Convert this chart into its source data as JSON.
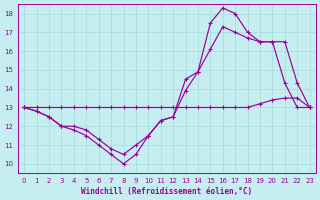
{
  "xlabel": "Windchill (Refroidissement éolien,°C)",
  "xlim": [
    -0.5,
    23.5
  ],
  "ylim": [
    9.5,
    18.5
  ],
  "xticks": [
    0,
    1,
    2,
    3,
    4,
    5,
    6,
    7,
    8,
    9,
    10,
    11,
    12,
    13,
    14,
    15,
    16,
    17,
    18,
    19,
    20,
    21,
    22,
    23
  ],
  "yticks": [
    10,
    11,
    12,
    13,
    14,
    15,
    16,
    17,
    18
  ],
  "bg_color": "#c6eef0",
  "grid_color": "#aadddf",
  "line_color": "#990099",
  "line1_x": [
    0,
    1,
    2,
    3,
    4,
    5,
    6,
    7,
    8,
    9,
    10,
    11,
    12,
    13,
    14,
    15,
    16,
    17,
    18,
    19,
    20,
    21,
    22,
    23
  ],
  "line1_y": [
    13,
    12.8,
    12.5,
    12.0,
    11.8,
    11.5,
    11.0,
    10.5,
    10.0,
    10.5,
    11.5,
    12.3,
    12.5,
    14.5,
    14.9,
    17.5,
    18.3,
    18.0,
    17.0,
    16.5,
    16.5,
    14.3,
    13.0,
    13.0
  ],
  "line2_x": [
    0,
    1,
    2,
    3,
    4,
    5,
    6,
    7,
    8,
    9,
    10,
    11,
    12,
    13,
    14,
    15,
    16,
    17,
    18,
    19,
    20,
    21,
    22,
    23
  ],
  "line2_y": [
    13,
    12.8,
    12.5,
    12.0,
    12.0,
    11.8,
    11.3,
    10.8,
    10.5,
    11.0,
    11.5,
    12.3,
    12.5,
    13.9,
    14.9,
    16.1,
    17.3,
    17.0,
    16.7,
    16.5,
    16.5,
    16.5,
    14.3,
    13.0
  ],
  "line3_x": [
    0,
    1,
    2,
    3,
    4,
    5,
    6,
    7,
    8,
    9,
    10,
    11,
    12,
    13,
    14,
    15,
    16,
    17,
    18,
    19,
    20,
    21,
    22,
    23
  ],
  "line3_y": [
    13,
    13,
    13,
    13,
    13,
    13,
    13,
    13,
    13,
    13,
    13,
    13,
    13,
    13,
    13,
    13,
    13,
    13,
    13,
    13.2,
    13.4,
    13.5,
    13.5,
    13.0
  ]
}
